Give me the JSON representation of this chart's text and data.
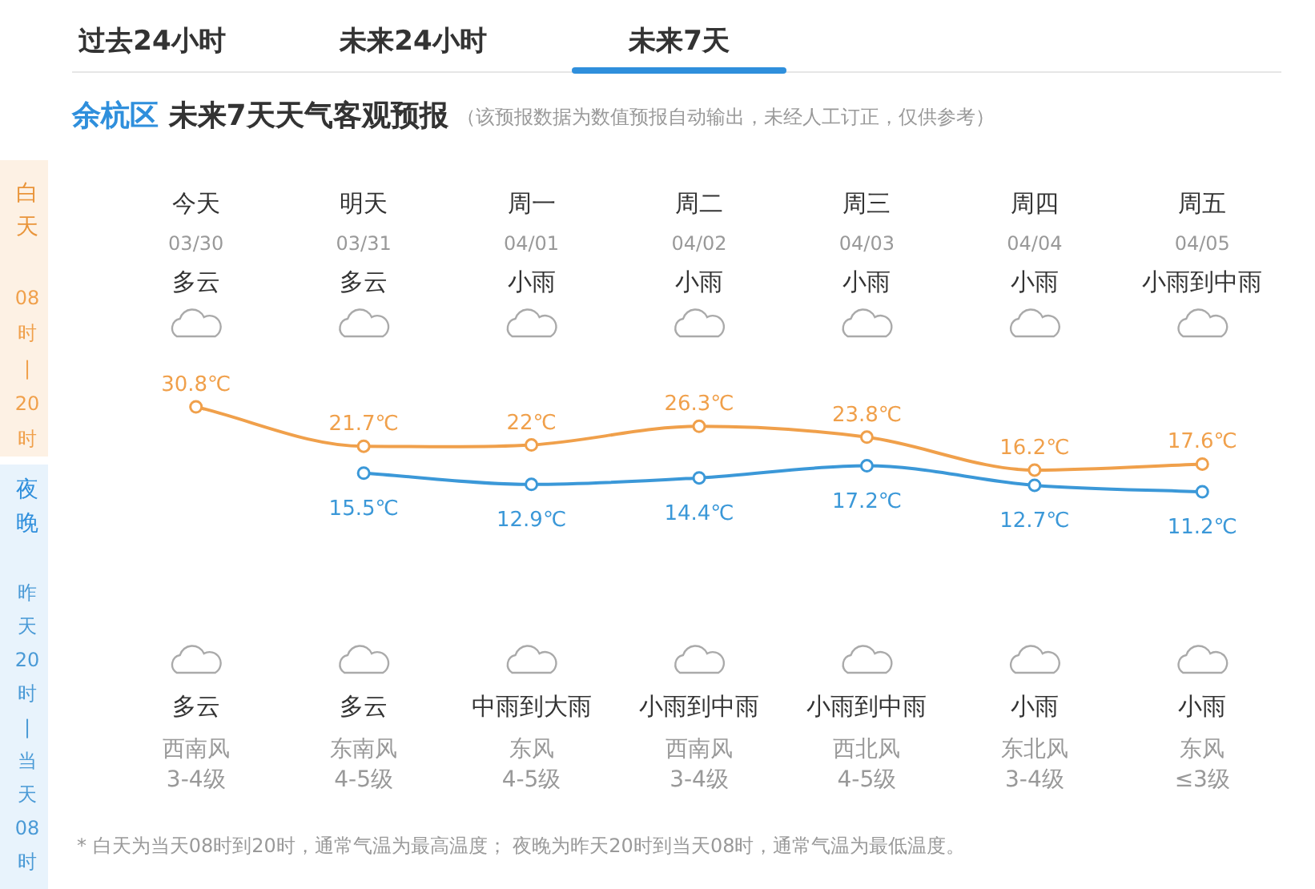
{
  "chart_data": {
    "type": "line",
    "title": "余杭区 未来7天天气客观预报",
    "subtitle": "（该预报数据为数值预报自动输出，未经人工订正，仅供参考）",
    "categories": [
      "今天",
      "明天",
      "周一",
      "周二",
      "周三",
      "周四",
      "周五"
    ],
    "series": [
      {
        "name": null,
        "color": "#f0a04b",
        "values": [
          30.8,
          21.7,
          22,
          26.3,
          23.8,
          16.2,
          17.6
        ],
        "value_labels": [
          "30.8℃",
          "21.7℃",
          "22℃",
          "26.3℃",
          "23.8℃",
          "16.2℃",
          "17.6℃"
        ]
      },
      {
        "name": null,
        "color": "#3b98d8",
        "values": [
          null,
          15.5,
          12.9,
          14.4,
          17.2,
          12.7,
          11.2
        ],
        "value_labels": [
          null,
          "15.5℃",
          "12.9℃",
          "14.4℃",
          "17.2℃",
          "12.7℃",
          "11.2℃"
        ]
      }
    ],
    "marker": "circle",
    "annotations": [
      "过去24小时",
      "未来24小时",
      "未来7天",
      "白天",
      "08时|20时",
      "夜晚",
      "昨天20时|当天08时",
      "* 白天为当天08时到20时，通常气温为最高温度；  夜晚为昨天20时到当天08时，通常气温为最低温度。",
      "03/30",
      "03/31",
      "04/01",
      "04/02",
      "04/03",
      "04/04",
      "04/05",
      "多云",
      "多云",
      "小雨",
      "小雨",
      "小雨",
      "小雨",
      "小雨到中雨",
      "多云",
      "多云",
      "中雨到大雨",
      "小雨到中雨",
      "小雨到中雨",
      "小雨",
      "小雨",
      "西南风",
      "东南风",
      "东风",
      "西南风",
      "西北风",
      "东北风",
      "东风",
      "3-4级",
      "4-5级",
      "4-5级",
      "3-4级",
      "4-5级",
      "3-4级",
      "≤3级"
    ]
  }
}
